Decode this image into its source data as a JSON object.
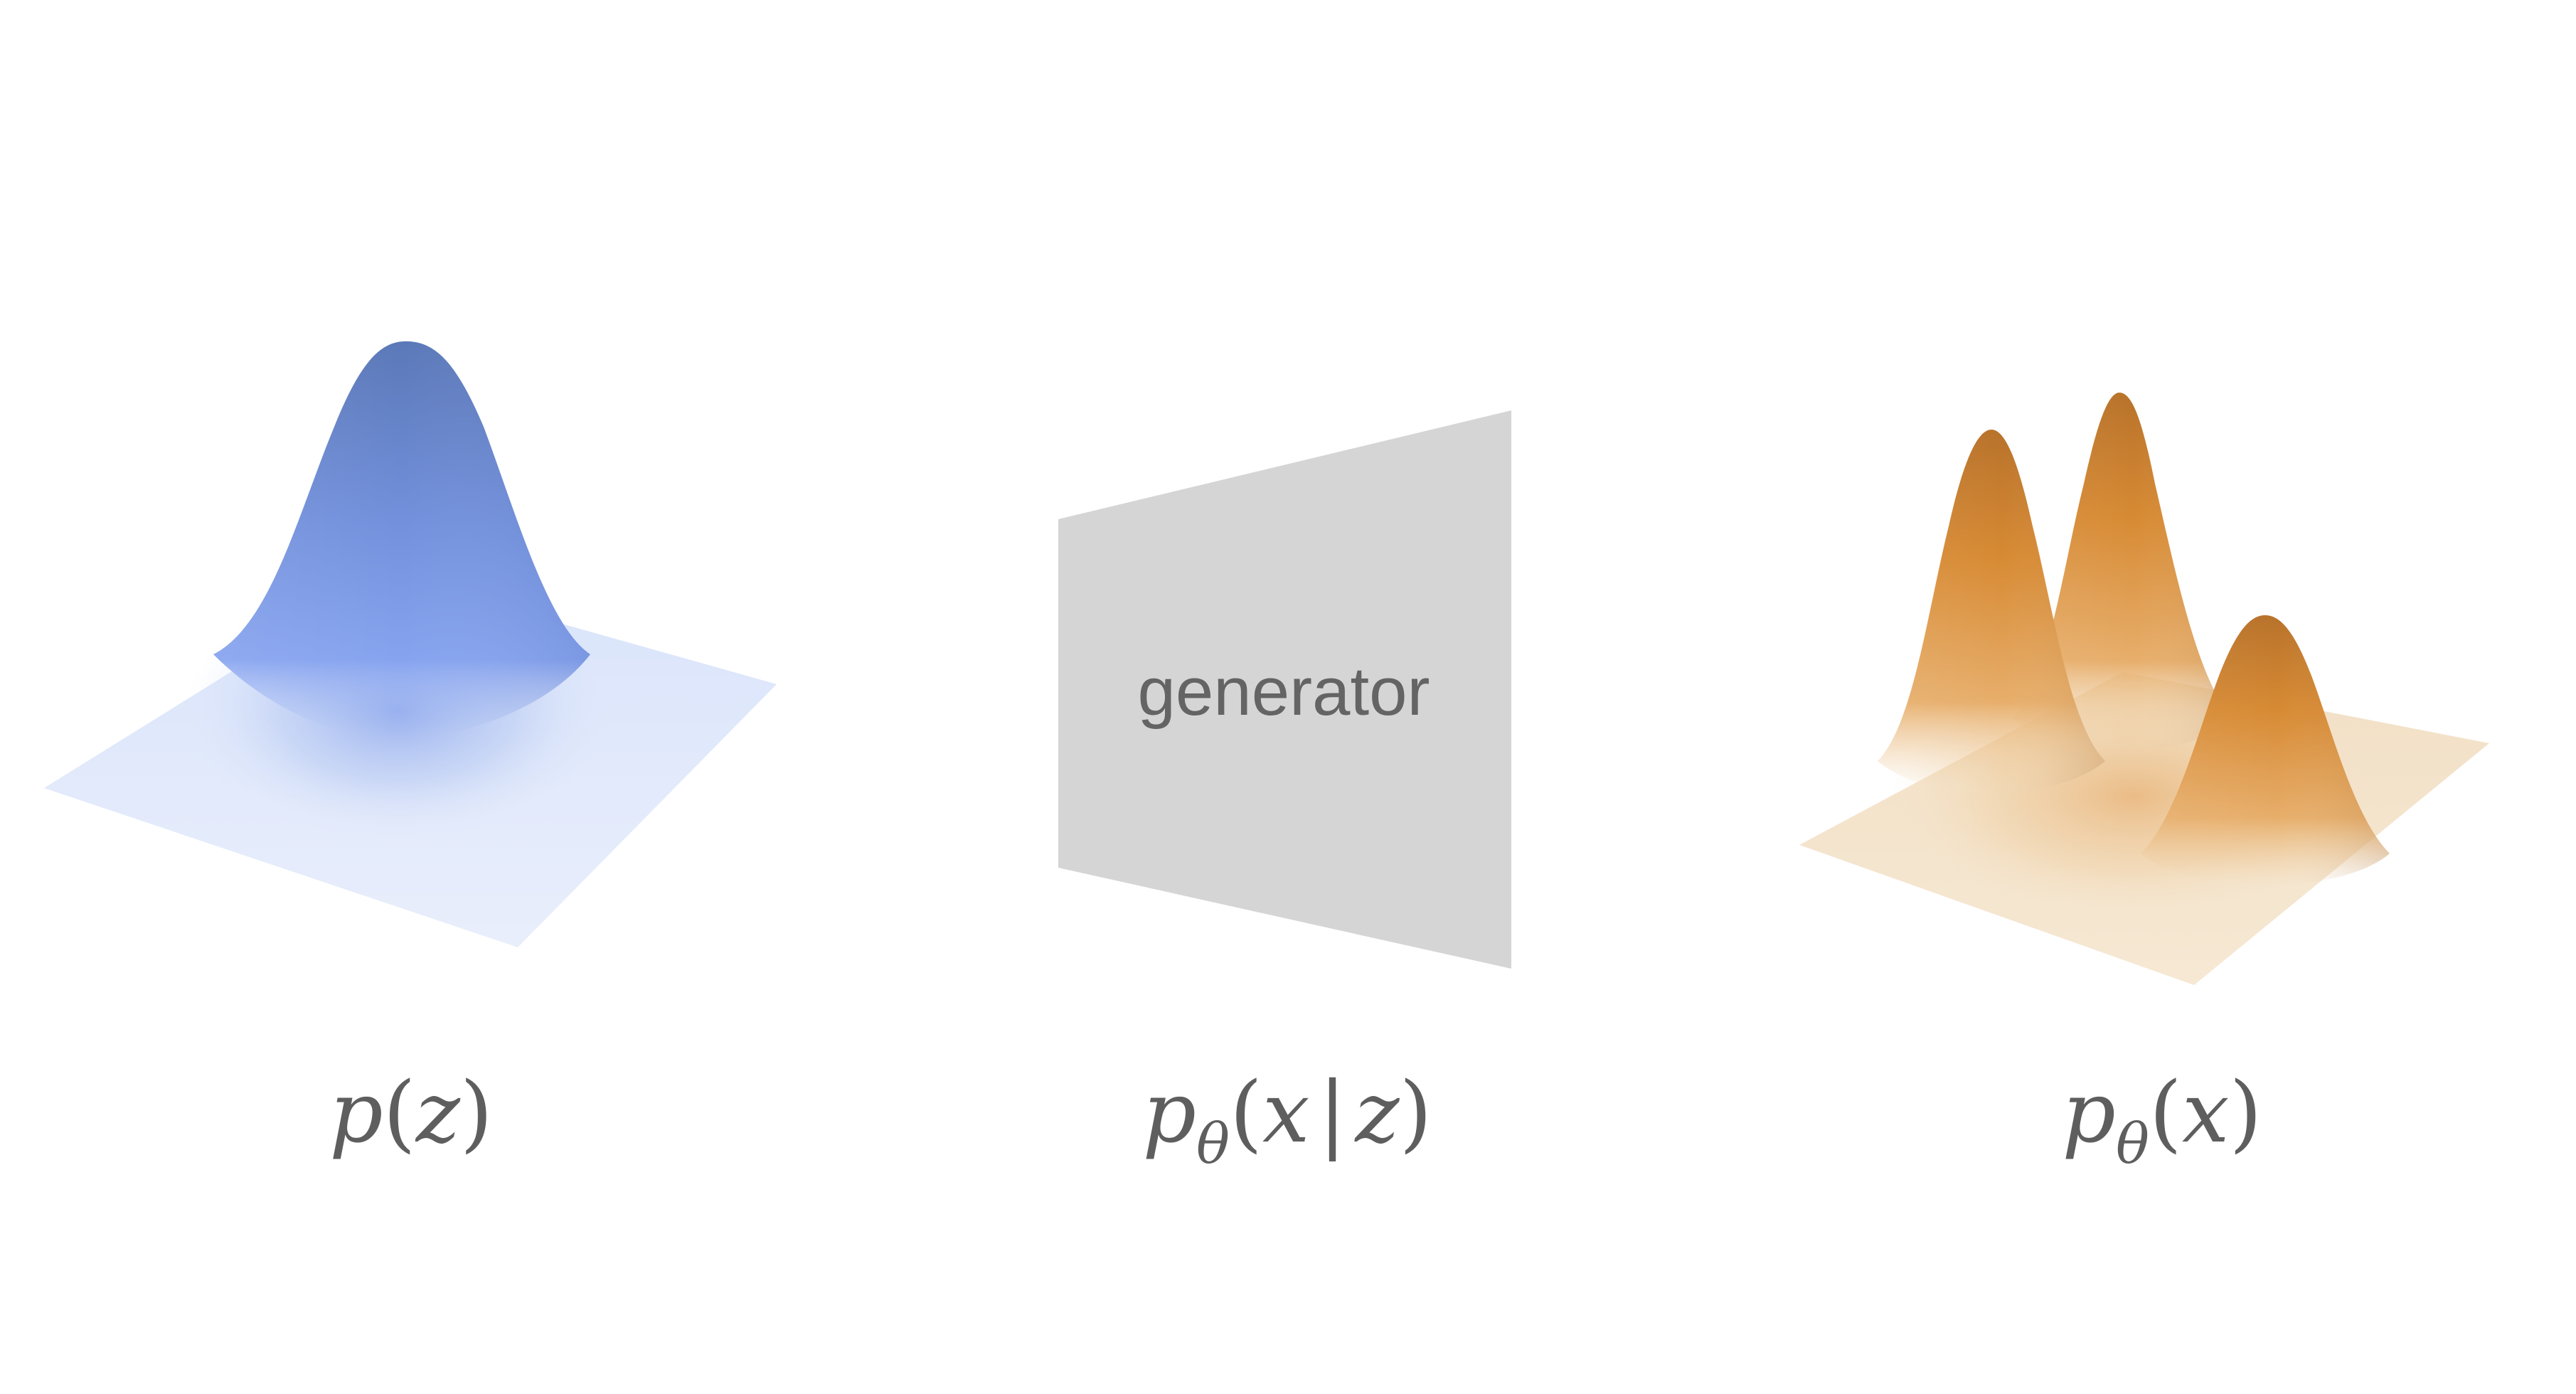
{
  "panels": {
    "prior": {
      "label_var": "p",
      "label_open": "(",
      "label_arg": "z",
      "label_close": ")",
      "color": "#6f94e8",
      "peaks": 1
    },
    "generator": {
      "box_text": "generator",
      "label_var": "p",
      "label_sub": "θ",
      "label_open": "(",
      "label_arg1": "x",
      "label_bar": "|",
      "label_arg2": "z",
      "label_close": ")",
      "fill": "#d5d5d5"
    },
    "marginal": {
      "label_var": "p",
      "label_sub": "θ",
      "label_open": "(",
      "label_arg": "x",
      "label_close": ")",
      "color": "#e08a2a",
      "peaks": 3
    }
  }
}
